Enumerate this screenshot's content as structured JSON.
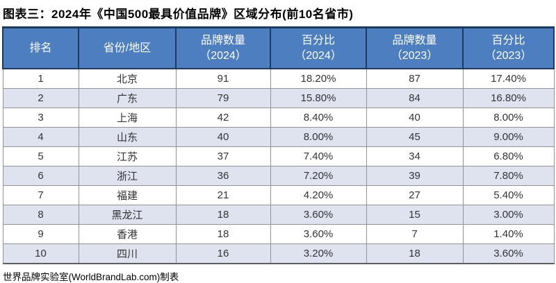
{
  "title": "图表三：2024年《中国500最具价值品牌》区域分布(前10名省市)",
  "footer": "世界品牌实验室(WorldBrandLab.com)制表",
  "colors": {
    "header_bg": "#4d7ebf",
    "header_text": "#ffffff",
    "header_border": "#1d3a5f",
    "stripe_bg": "#dfe3ef",
    "grid_line": "#8e9299",
    "body_text": "#333333"
  },
  "table": {
    "headers": [
      {
        "line1": "排名",
        "line2": ""
      },
      {
        "line1": "省份/地区",
        "line2": ""
      },
      {
        "line1": "品牌数量",
        "line2": "（2024）"
      },
      {
        "line1": "百分比",
        "line2": "（2024）"
      },
      {
        "line1": "品牌数量",
        "line2": "（2023）"
      },
      {
        "line1": "百分比",
        "line2": "（2023）"
      }
    ]
  },
  "chart_data": {
    "type": "table",
    "title": "图表三：2024年《中国500最具价值品牌》区域分布(前10名省市)",
    "columns": [
      "排名",
      "省份/地区",
      "品牌数量（2024）",
      "百分比（2024）",
      "品牌数量（2023）",
      "百分比（2023）"
    ],
    "rows": [
      [
        "1",
        "北京",
        "91",
        "18.20%",
        "87",
        "17.40%"
      ],
      [
        "2",
        "广东",
        "79",
        "15.80%",
        "84",
        "16.80%"
      ],
      [
        "3",
        "上海",
        "42",
        "8.40%",
        "40",
        "8.00%"
      ],
      [
        "4",
        "山东",
        "40",
        "8.00%",
        "45",
        "9.00%"
      ],
      [
        "5",
        "江苏",
        "37",
        "7.40%",
        "34",
        "6.80%"
      ],
      [
        "6",
        "浙江",
        "36",
        "7.20%",
        "39",
        "7.80%"
      ],
      [
        "7",
        "福建",
        "21",
        "4.20%",
        "27",
        "5.40%"
      ],
      [
        "8",
        "黑龙江",
        "18",
        "3.60%",
        "15",
        "3.00%"
      ],
      [
        "9",
        "香港",
        "18",
        "3.60%",
        "7",
        "1.40%"
      ],
      [
        "10",
        "四川",
        "16",
        "3.20%",
        "18",
        "3.60%"
      ]
    ],
    "source": "世界品牌实验室(WorldBrandLab.com)制表"
  }
}
